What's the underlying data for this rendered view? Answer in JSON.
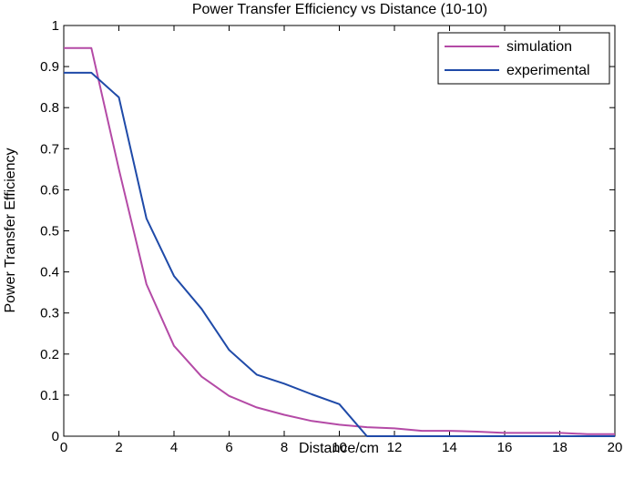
{
  "chart_data": {
    "type": "line",
    "title": "Power Transfer Efficiency vs Distance (10-10)",
    "xlabel": "Distance/cm",
    "ylabel": "Power Transfer Efficiency",
    "xlim": [
      0,
      20
    ],
    "ylim": [
      0,
      1
    ],
    "xticks": [
      0,
      2,
      4,
      6,
      8,
      10,
      12,
      14,
      16,
      18,
      20
    ],
    "yticks": [
      0,
      0.1,
      0.2,
      0.3,
      0.4,
      0.5,
      0.6,
      0.7,
      0.8,
      0.9,
      1
    ],
    "xtick_labels": [
      "0",
      "2",
      "4",
      "6",
      "8",
      "10",
      "12",
      "14",
      "16",
      "18",
      "20"
    ],
    "ytick_labels": [
      "0",
      "0.1",
      "0.2",
      "0.3",
      "0.4",
      "0.5",
      "0.6",
      "0.7",
      "0.8",
      "0.9",
      "1"
    ],
    "grid": false,
    "legend_position": "top-right",
    "series": [
      {
        "name": "simulation",
        "color": "#b44aa6",
        "x": [
          0,
          1,
          2,
          3,
          4,
          5,
          6,
          7,
          8,
          9,
          10,
          11,
          12,
          13,
          14,
          15,
          16,
          17,
          18,
          19,
          20
        ],
        "y": [
          0.945,
          0.945,
          0.65,
          0.37,
          0.22,
          0.145,
          0.098,
          0.07,
          0.052,
          0.037,
          0.028,
          0.022,
          0.019,
          0.013,
          0.013,
          0.011,
          0.008,
          0.008,
          0.008,
          0.005,
          0.005
        ]
      },
      {
        "name": "experimental",
        "color": "#1f4aa8",
        "x": [
          0,
          1,
          2,
          3,
          4,
          5,
          6,
          7,
          8,
          9,
          10,
          11,
          12,
          13,
          14,
          15,
          16,
          17,
          18,
          19,
          20
        ],
        "y": [
          0.885,
          0.885,
          0.825,
          0.53,
          0.39,
          0.31,
          0.21,
          0.15,
          0.128,
          0.102,
          0.078,
          0,
          0,
          0,
          0,
          0,
          0,
          0,
          0,
          0,
          0
        ]
      }
    ]
  }
}
